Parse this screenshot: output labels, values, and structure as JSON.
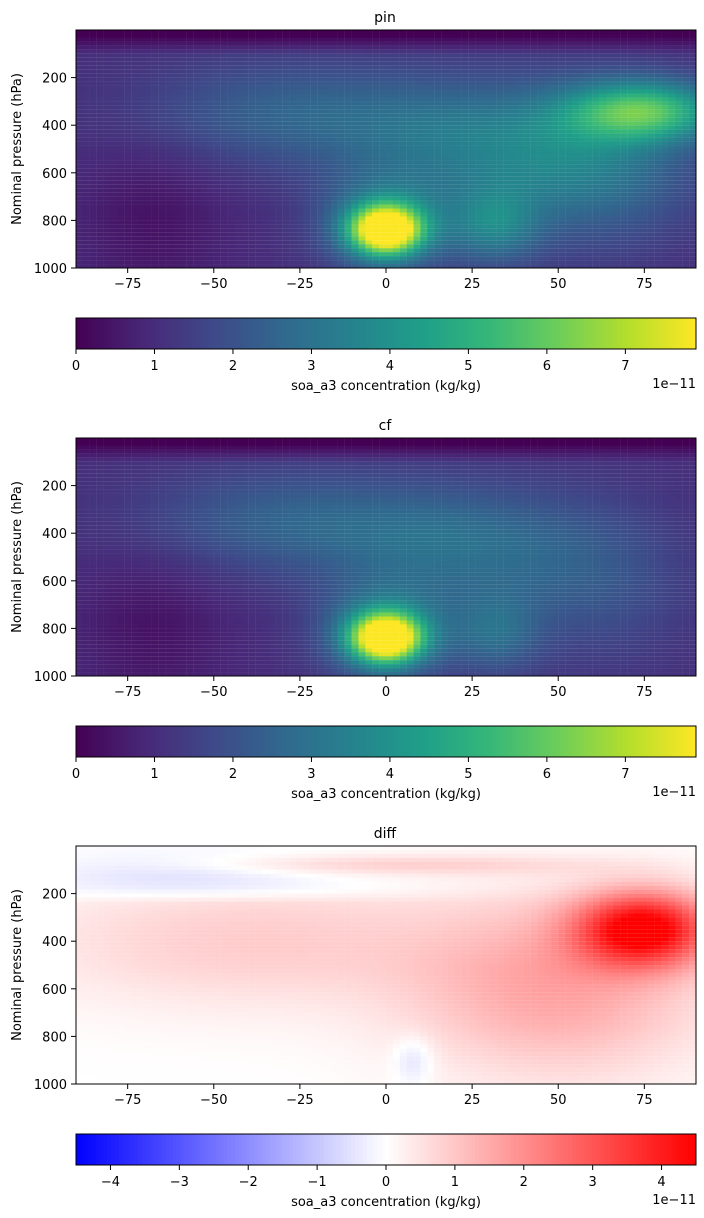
{
  "chart_data": [
    {
      "type": "heatmap",
      "title": "pin",
      "xlabel": "",
      "ylabel": "Nominal pressure (hPa)",
      "xlim": [
        -90,
        90
      ],
      "ylim": [
        1000,
        0
      ],
      "xticks": [
        -75,
        -50,
        -25,
        0,
        25,
        50,
        75
      ],
      "xtick_labels": [
        "−75",
        "−50",
        "−25",
        "0",
        "25",
        "50",
        "75"
      ],
      "yticks": [
        200,
        400,
        600,
        800,
        1000
      ],
      "ytick_labels": [
        "200",
        "400",
        "600",
        "800",
        "1000"
      ],
      "colormap": "viridis",
      "features": [
        {
          "lat": 0,
          "p": 840,
          "value": 7.8
        },
        {
          "lat": 75,
          "p": 330,
          "value": 5.5
        },
        {
          "lat": 30,
          "p": 820,
          "value": 4.2
        }
      ],
      "colorbar": {
        "label": "soa_a3 concentration (kg/kg)",
        "vmin": 0,
        "vmax": 7.9,
        "ticks": [
          0,
          1,
          2,
          3,
          4,
          5,
          6,
          7
        ],
        "tick_labels": [
          "0",
          "1",
          "2",
          "3",
          "4",
          "5",
          "6",
          "7"
        ],
        "offset": "1e−11"
      }
    },
    {
      "type": "heatmap",
      "title": "cf",
      "xlabel": "",
      "ylabel": "Nominal pressure (hPa)",
      "xlim": [
        -90,
        90
      ],
      "ylim": [
        1000,
        0
      ],
      "xticks": [
        -75,
        -50,
        -25,
        0,
        25,
        50,
        75
      ],
      "xtick_labels": [
        "−75",
        "−50",
        "−25",
        "0",
        "25",
        "50",
        "75"
      ],
      "yticks": [
        200,
        400,
        600,
        800,
        1000
      ],
      "ytick_labels": [
        "200",
        "400",
        "600",
        "800",
        "1000"
      ],
      "colormap": "viridis",
      "features": [
        {
          "lat": 0,
          "p": 840,
          "value": 7.5
        },
        {
          "lat": 30,
          "p": 820,
          "value": 3.6
        }
      ],
      "colorbar": {
        "label": "soa_a3 concentration (kg/kg)",
        "vmin": 0,
        "vmax": 7.9,
        "ticks": [
          0,
          1,
          2,
          3,
          4,
          5,
          6,
          7
        ],
        "tick_labels": [
          "0",
          "1",
          "2",
          "3",
          "4",
          "5",
          "6",
          "7"
        ],
        "offset": "1e−11"
      }
    },
    {
      "type": "heatmap",
      "title": "diff",
      "xlabel": "",
      "ylabel": "Nominal pressure (hPa)",
      "xlim": [
        -90,
        90
      ],
      "ylim": [
        1000,
        0
      ],
      "xticks": [
        -75,
        -50,
        -25,
        0,
        25,
        50,
        75
      ],
      "xtick_labels": [
        "−75",
        "−50",
        "−25",
        "0",
        "25",
        "50",
        "75"
      ],
      "yticks": [
        200,
        400,
        600,
        800,
        1000
      ],
      "ytick_labels": [
        "200",
        "400",
        "600",
        "800",
        "1000"
      ],
      "colormap": "bwr",
      "features": [
        {
          "lat": 75,
          "p": 340,
          "value": 4.4
        },
        {
          "lat": 8,
          "p": 900,
          "value": -0.6
        },
        {
          "lat": -60,
          "p": 120,
          "value": -0.5
        }
      ],
      "colorbar": {
        "label": "soa_a3 concentration (kg/kg)",
        "vmin": -4.5,
        "vmax": 4.5,
        "ticks": [
          -4,
          -3,
          -2,
          -1,
          0,
          1,
          2,
          3,
          4
        ],
        "tick_labels": [
          "−4",
          "−3",
          "−2",
          "−1",
          "0",
          "1",
          "2",
          "3",
          "4"
        ],
        "offset": "1e−11"
      }
    }
  ]
}
